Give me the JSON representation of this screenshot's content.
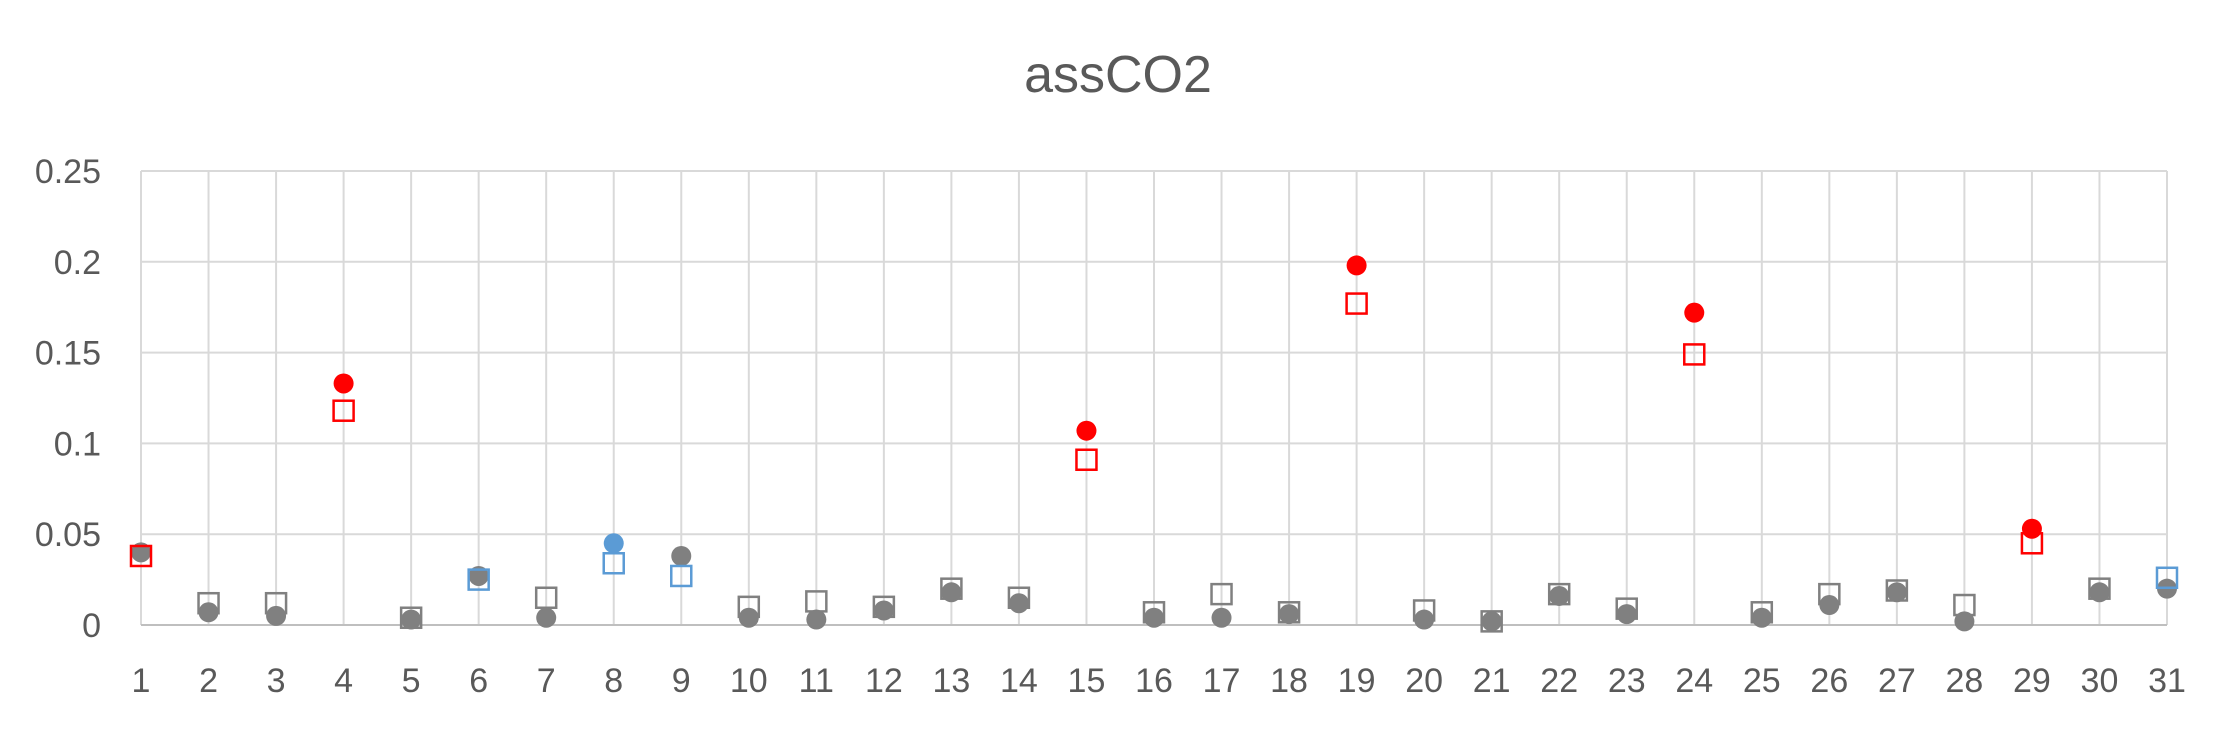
{
  "chart_data": {
    "type": "scatter",
    "title": "assCO2",
    "xlabel": "",
    "ylabel": "",
    "x": [
      1,
      2,
      3,
      4,
      5,
      6,
      7,
      8,
      9,
      10,
      11,
      12,
      13,
      14,
      15,
      16,
      17,
      18,
      19,
      20,
      21,
      22,
      23,
      24,
      25,
      26,
      27,
      28,
      29,
      30,
      31
    ],
    "xlim": [
      1,
      31
    ],
    "ylim": [
      0,
      0.25
    ],
    "y_ticks": [
      "0",
      "0.05",
      "0.1",
      "0.15",
      "0.2",
      "0.25"
    ],
    "y_tick_values": [
      0,
      0.05,
      0.1,
      0.15,
      0.2,
      0.25
    ],
    "grid": true,
    "series": [
      {
        "marker": "circle-filled",
        "values": [
          0.04,
          0.007,
          0.005,
          0.133,
          0.003,
          0.027,
          0.004,
          0.045,
          0.038,
          0.004,
          0.003,
          0.008,
          0.018,
          0.012,
          0.107,
          0.004,
          0.004,
          0.006,
          0.198,
          0.003,
          0.002,
          0.016,
          0.006,
          0.172,
          0.004,
          0.011,
          0.018,
          0.002,
          0.053,
          0.018,
          0.02
        ],
        "colors": [
          "#808080",
          "#808080",
          "#808080",
          "#ff0000",
          "#808080",
          "#808080",
          "#808080",
          "#5b9bd5",
          "#808080",
          "#808080",
          "#808080",
          "#808080",
          "#808080",
          "#808080",
          "#ff0000",
          "#808080",
          "#808080",
          "#808080",
          "#ff0000",
          "#808080",
          "#808080",
          "#808080",
          "#808080",
          "#ff0000",
          "#808080",
          "#808080",
          "#808080",
          "#808080",
          "#ff0000",
          "#808080",
          "#808080"
        ]
      },
      {
        "marker": "square-open",
        "values": [
          0.038,
          0.012,
          0.012,
          0.118,
          0.004,
          0.025,
          0.015,
          0.034,
          0.027,
          0.01,
          0.013,
          0.01,
          0.02,
          0.015,
          0.091,
          0.007,
          0.017,
          0.007,
          0.177,
          0.008,
          0.002,
          0.017,
          0.009,
          0.149,
          0.007,
          0.017,
          0.019,
          0.011,
          0.045,
          0.02,
          0.026
        ],
        "colors": [
          "#ff0000",
          "#808080",
          "#808080",
          "#ff0000",
          "#808080",
          "#5b9bd5",
          "#808080",
          "#5b9bd5",
          "#5b9bd5",
          "#808080",
          "#808080",
          "#808080",
          "#808080",
          "#808080",
          "#ff0000",
          "#808080",
          "#808080",
          "#808080",
          "#ff0000",
          "#808080",
          "#808080",
          "#808080",
          "#808080",
          "#ff0000",
          "#808080",
          "#808080",
          "#808080",
          "#808080",
          "#ff0000",
          "#808080",
          "#5b9bd5"
        ]
      }
    ]
  }
}
